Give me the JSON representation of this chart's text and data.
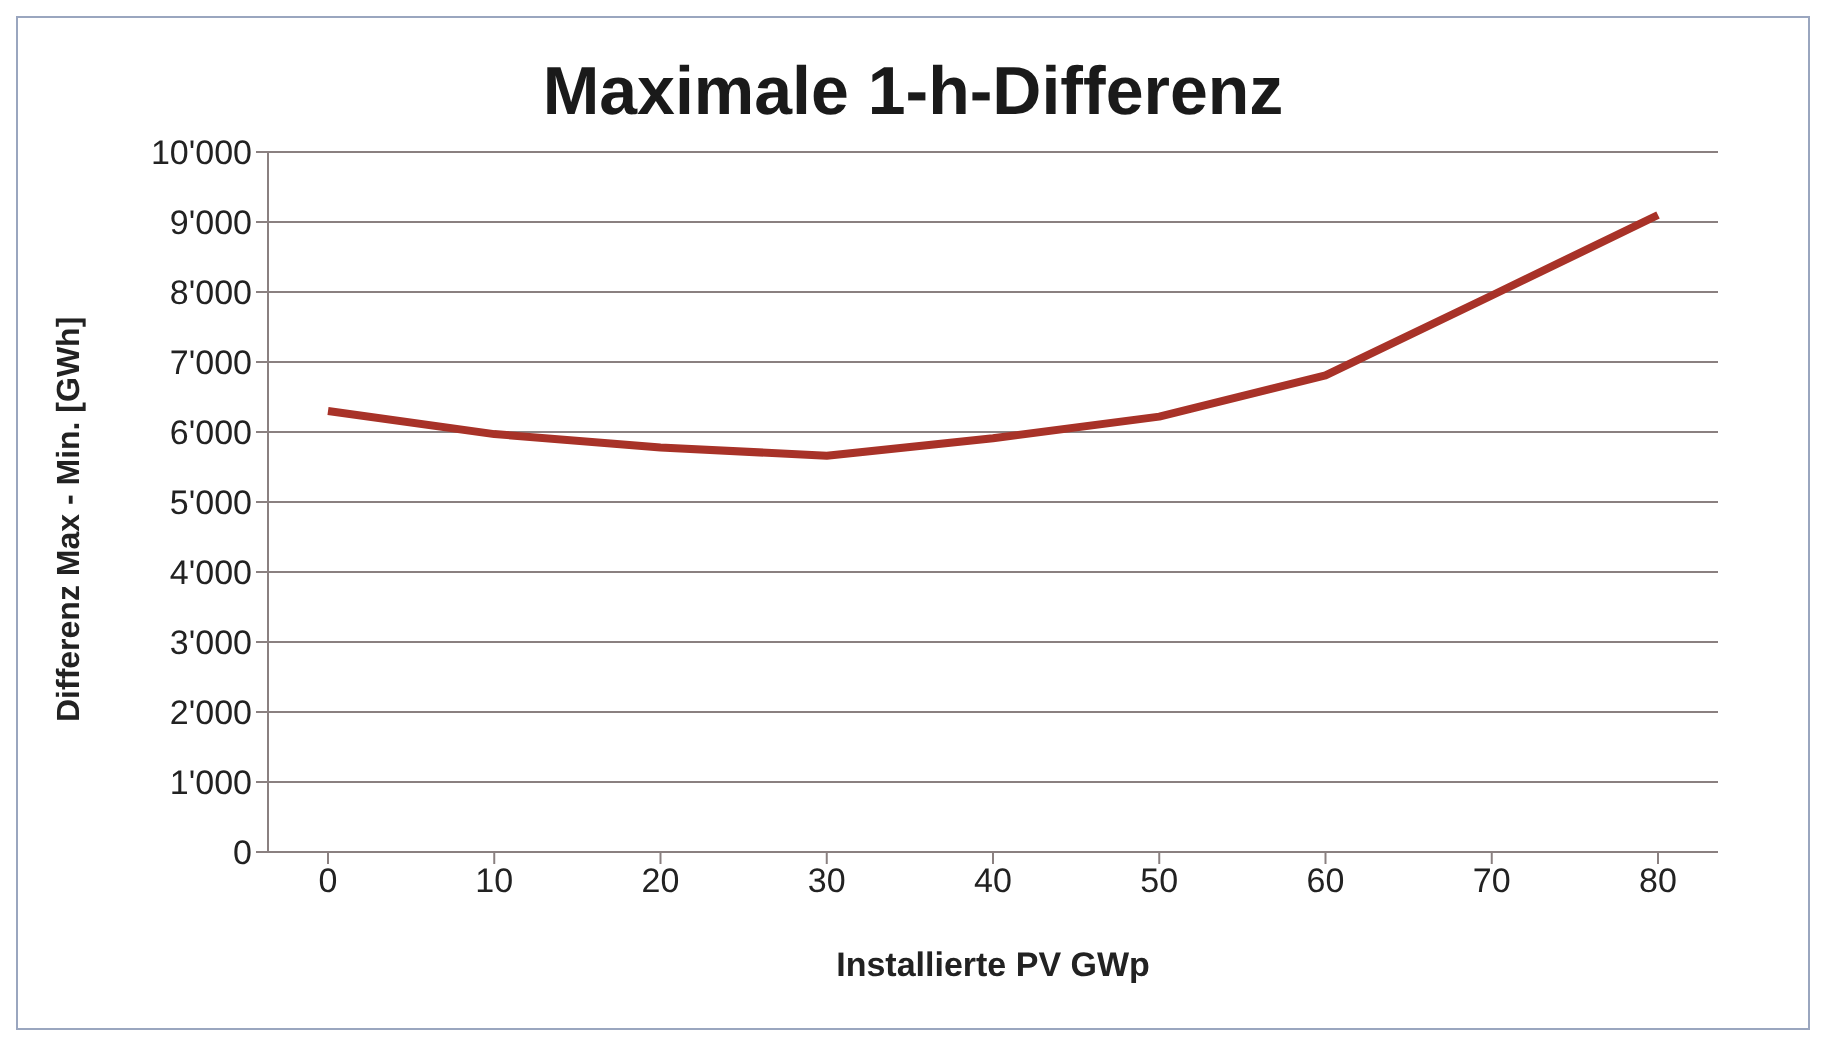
{
  "chart_data": {
    "type": "line",
    "title": "Maximale 1-h-Differenz",
    "xlabel": "Installierte PV GWp",
    "ylabel": "Differenz Max - Min. [GWh]",
    "categories": [
      "0",
      "10",
      "20",
      "30",
      "40",
      "50",
      "60",
      "70",
      "80"
    ],
    "series": [
      {
        "color": "#a83228",
        "values": [
          6300,
          5970,
          5780,
          5660,
          5910,
          6220,
          6810,
          7950,
          9100
        ]
      }
    ],
    "ylim": [
      0,
      10000
    ],
    "yticks": [
      0,
      {
        "value": 1000,
        "label": "1'000"
      },
      {
        "value": 2000,
        "label": "2'000"
      },
      {
        "value": 3000,
        "label": "3'000"
      },
      {
        "value": 4000,
        "label": "4'000"
      },
      {
        "value": 5000,
        "label": "5'000"
      },
      {
        "value": 6000,
        "label": "6'000"
      },
      {
        "value": 7000,
        "label": "7'000"
      },
      {
        "value": 8000,
        "label": "8'000"
      },
      {
        "value": 9000,
        "label": "9'000"
      },
      {
        "value": 10000,
        "label": "10'000"
      }
    ],
    "grid": "y",
    "legend": false,
    "marker": "none",
    "line_style": "solid"
  }
}
